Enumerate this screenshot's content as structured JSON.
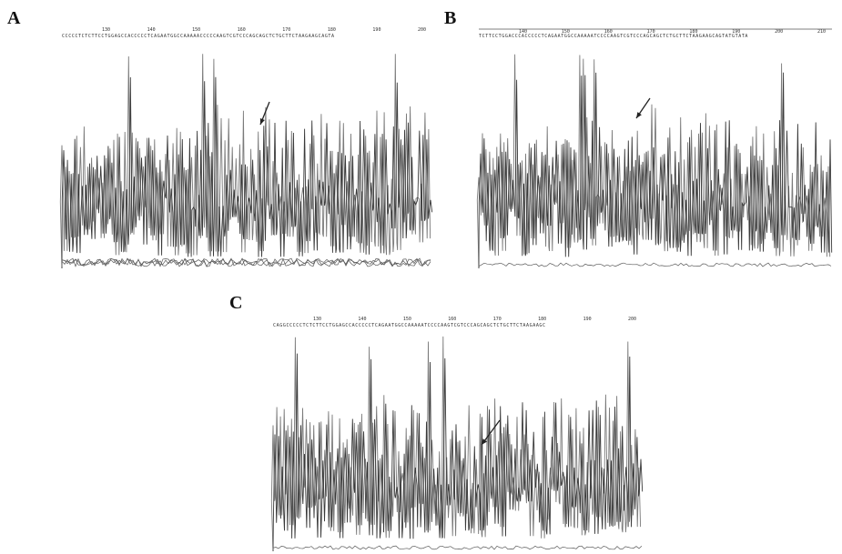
{
  "figure": {
    "panels": [
      {
        "letter": "A",
        "sequence": "CCCCCTCTCTTCCTGGAGCCACCCCCTCAGAATGGCCAAAAACCCCCAAGTCGTCCCAGCAGCTCTGCTTCTAAGAAGCAGTA",
        "positions": [
          "130",
          "140",
          "150",
          "160",
          "170",
          "180",
          "190",
          "200"
        ]
      },
      {
        "letter": "B",
        "sequence": "TCTTCCTGGACCCACCCCCTCAGAATGGCCAAAAATCCCCAAGTCGTCCCAGCAGCTCTGCTTCTAAGAAGCAGTATGTATA",
        "positions": [
          "140",
          "150",
          "160",
          "170",
          "180",
          "190",
          "200",
          "210"
        ]
      },
      {
        "letter": "C",
        "sequence": "CAGGCCCCCTCTCTTCCTGGAGCCACCCCCTCAGAATGGCCAAAAATCCCCAAGTCGTCCCAGCAGCTCTGCTTCTAAGAAGC",
        "positions": [
          "130",
          "140",
          "150",
          "160",
          "170",
          "180",
          "190",
          "200"
        ]
      }
    ]
  },
  "colors": {
    "trace": "#7a7a7a",
    "trace_dark": "#3a3a3a",
    "baseline": "#5a5a5a",
    "arrow": "#222222"
  },
  "chart_data": [
    {
      "type": "line",
      "panel": "A",
      "title": "",
      "xlabel": "",
      "ylabel": "",
      "x": [
        "130",
        "140",
        "150",
        "160",
        "170",
        "180",
        "190",
        "200"
      ],
      "grid": false,
      "arrow_near_position": "167"
    },
    {
      "type": "line",
      "panel": "B",
      "title": "",
      "xlabel": "",
      "ylabel": "",
      "x": [
        "140",
        "150",
        "160",
        "170",
        "180",
        "190",
        "200",
        "210"
      ],
      "grid": false,
      "arrow_near_position": "167"
    },
    {
      "type": "line",
      "panel": "C",
      "title": "",
      "xlabel": "",
      "ylabel": "",
      "x": [
        "130",
        "140",
        "150",
        "160",
        "170",
        "180",
        "190",
        "200"
      ],
      "grid": false,
      "arrow_near_position": "172"
    }
  ]
}
